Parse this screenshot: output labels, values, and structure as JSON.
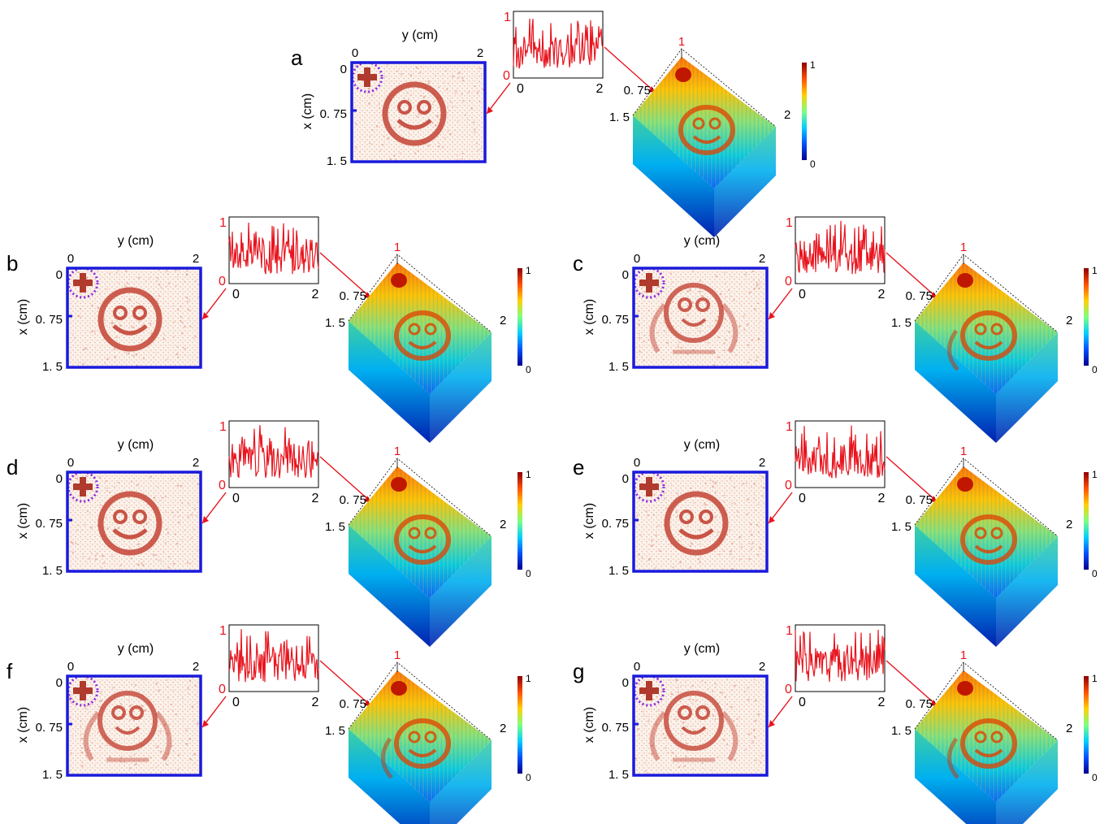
{
  "figure": {
    "axis_labels": {
      "y": "y (cm)",
      "x": "x (cm)"
    },
    "x_ticks": [
      "0",
      "0. 75",
      "1. 5"
    ],
    "y_ticks": [
      "0",
      "2"
    ],
    "trace_ticks": {
      "x0": "0",
      "x2": "2",
      "y0": "0",
      "y1": "1"
    },
    "surface_ticks": {
      "top": "1",
      "left1": "0. 75",
      "left2": "1. 5",
      "right": "2"
    },
    "colorbar": {
      "max": "1",
      "min": "0",
      "colors": [
        "#00008f",
        "#0050ff",
        "#00d0ff",
        "#7fff7f",
        "#ffd000",
        "#ff5000",
        "#8f0000"
      ]
    },
    "colors": {
      "frame": "#1a1adc",
      "trace": "#e8141e",
      "arrow": "#e8141e",
      "tick_red": "#e8141e",
      "pattern": "#c0392b",
      "circle": "#8a2be2"
    },
    "panels": [
      {
        "label": "a",
        "pattern": "smiley",
        "seed": 1
      },
      {
        "label": "b",
        "pattern": "smiley",
        "seed": 2
      },
      {
        "label": "c",
        "pattern": "monkey",
        "seed": 3
      },
      {
        "label": "d",
        "pattern": "smiley",
        "seed": 4
      },
      {
        "label": "e",
        "pattern": "smiley",
        "seed": 5
      },
      {
        "label": "f",
        "pattern": "monkey",
        "seed": 6
      },
      {
        "label": "g",
        "pattern": "monkey",
        "seed": 7
      }
    ]
  }
}
